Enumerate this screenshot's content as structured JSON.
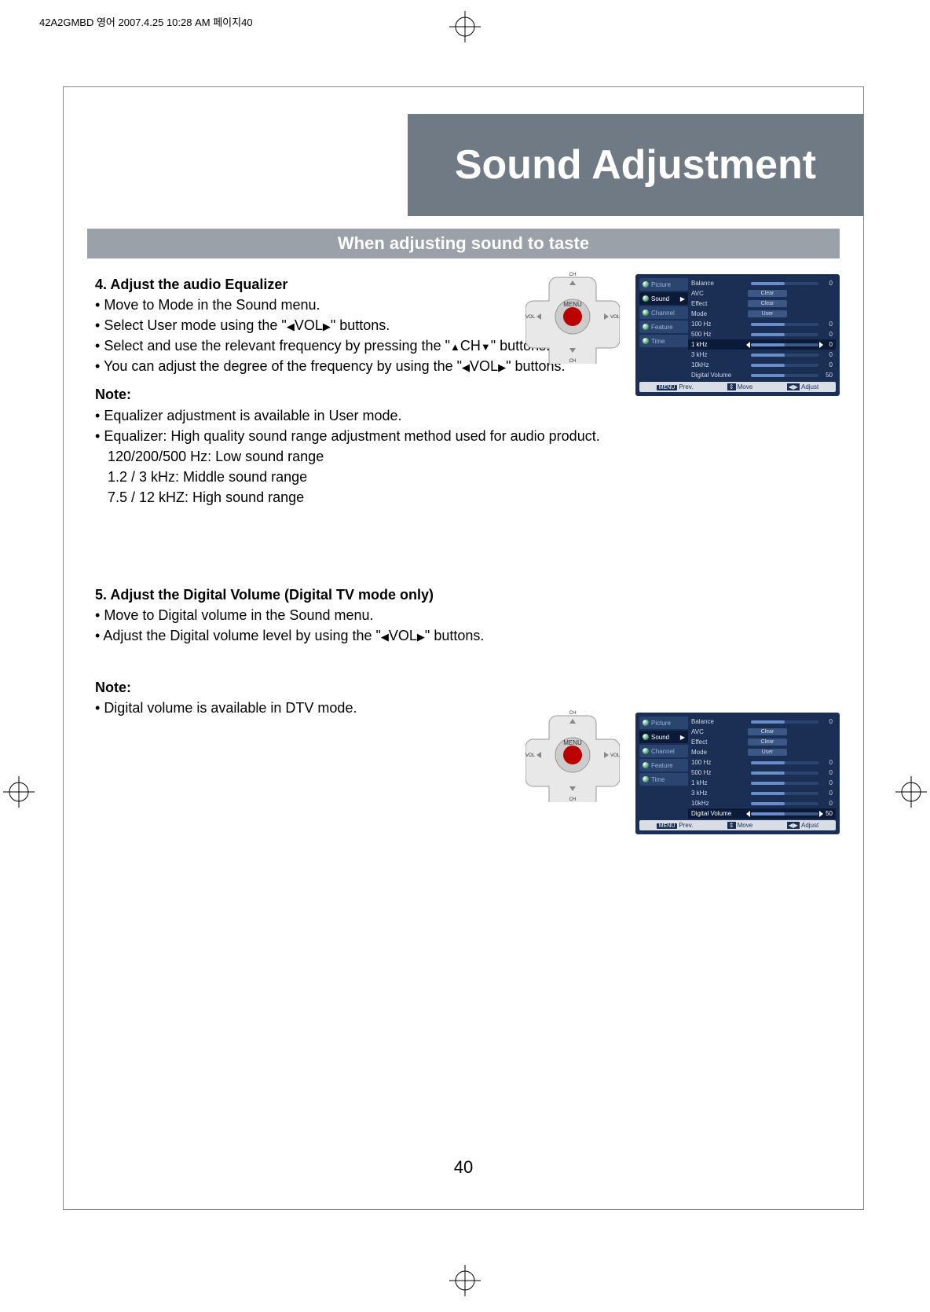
{
  "header": {
    "filename": "42A2GMBD 영어  2007.4.25 10:28 AM 페이지40"
  },
  "title": "Sound Adjustment",
  "section": "When adjusting sound to taste",
  "step4": {
    "heading": "4. Adjust the audio Equalizer",
    "l1": "Move to Mode in the Sound menu.",
    "l2a": "Select User mode using the \"",
    "l2b": "VOL",
    "l2c": "\" buttons.",
    "l3a": "Select and use the relevant frequency by pressing the \"",
    "l3b": "CH",
    "l3c": "\" buttons.",
    "l4a": "You can adjust the degree of the frequency by using the \"",
    "l4b": "VOL",
    "l4c": "\" buttons."
  },
  "note1": {
    "heading": "Note:",
    "l1": "Equalizer adjustment is available in User mode.",
    "l2": "Equalizer: High quality sound range adjustment method used for audio product.",
    "l3": "120/200/500 Hz: Low sound range",
    "l4": "1.2 / 3 kHz: Middle sound range",
    "l5": "7.5 / 12 kHZ: High sound range"
  },
  "step5": {
    "heading": "5. Adjust the Digital Volume (Digital TV mode only)",
    "l1": "Move to Digital volume in the Sound menu.",
    "l2a": "Adjust the Digital volume level by using the \"",
    "l2b": "VOL",
    "l2c": "\" buttons."
  },
  "note2": {
    "heading": "Note:",
    "l1": "Digital volume is available in DTV mode."
  },
  "pagenum": "40",
  "remote": {
    "center": "MENU",
    "up": "CH",
    "down": "CH",
    "left": "VOL",
    "right": "VOL"
  },
  "osd_tabs": [
    "Picture",
    "Sound",
    "Channel",
    "Feature",
    "Time"
  ],
  "osd1": {
    "rows": [
      {
        "label": "Balance",
        "type": "slider",
        "fill": 50,
        "num": "0"
      },
      {
        "label": "AVC",
        "type": "val",
        "val": "Clear"
      },
      {
        "label": "Effect",
        "type": "val",
        "val": "Clear"
      },
      {
        "label": "Mode",
        "type": "val",
        "val": "User"
      },
      {
        "label": "100 Hz",
        "type": "slider",
        "fill": 50,
        "num": "0"
      },
      {
        "label": "500 Hz",
        "type": "slider",
        "fill": 50,
        "num": "0"
      },
      {
        "label": "1 kHz",
        "type": "slider",
        "fill": 50,
        "num": "0",
        "hl": true
      },
      {
        "label": "3 kHz",
        "type": "slider",
        "fill": 50,
        "num": "0"
      },
      {
        "label": "10kHz",
        "type": "slider",
        "fill": 50,
        "num": "0"
      },
      {
        "label": "Digital Volume",
        "type": "slider",
        "fill": 50,
        "num": "50"
      }
    ]
  },
  "osd2": {
    "rows": [
      {
        "label": "Balance",
        "type": "slider",
        "fill": 50,
        "num": "0"
      },
      {
        "label": "AVC",
        "type": "val",
        "val": "Clear"
      },
      {
        "label": "Effect",
        "type": "val",
        "val": "Clear"
      },
      {
        "label": "Mode",
        "type": "val",
        "val": "User"
      },
      {
        "label": "100 Hz",
        "type": "slider",
        "fill": 50,
        "num": "0"
      },
      {
        "label": "500 Hz",
        "type": "slider",
        "fill": 50,
        "num": "0"
      },
      {
        "label": "1 kHz",
        "type": "slider",
        "fill": 50,
        "num": "0"
      },
      {
        "label": "3 kHz",
        "type": "slider",
        "fill": 50,
        "num": "0"
      },
      {
        "label": "10kHz",
        "type": "slider",
        "fill": 50,
        "num": "0"
      },
      {
        "label": "Digital Volume",
        "type": "slider",
        "fill": 50,
        "num": "50",
        "hl": true
      }
    ]
  },
  "osd_footer": {
    "prev": "Prev.",
    "move": "Move",
    "adjust": "Adjust",
    "menu": "MENU"
  }
}
